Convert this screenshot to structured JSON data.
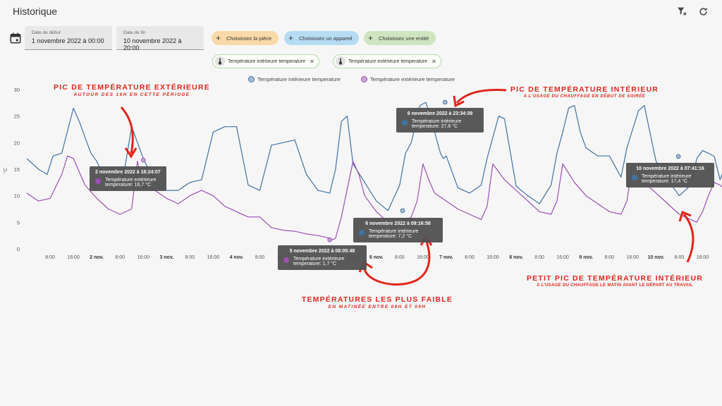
{
  "header": {
    "title": "Historique",
    "clear_filter_icon": "filter-remove-icon",
    "refresh_icon": "refresh-icon"
  },
  "date_range": {
    "calendar_icon": "calendar-icon",
    "start": {
      "label": "Date de début",
      "value": "1 novembre 2022 à 00:00"
    },
    "end": {
      "label": "Date de fin",
      "value": "10 novembre 2022 à 20:00"
    }
  },
  "pickers": [
    {
      "label": "Choisissez la pièce",
      "color": "#f9d9a8"
    },
    {
      "label": "Choisissez un appareil",
      "color": "#b6dcf3"
    },
    {
      "label": "Choisissez une entité",
      "color": "#cfe5c0"
    }
  ],
  "selected_entities": [
    {
      "label": "Température intérieure temperature",
      "icon": "thermometer-icon"
    },
    {
      "label": "Température extérieure temperature",
      "icon": "thermometer-icon"
    }
  ],
  "colors": {
    "indoor": "#3f72a5",
    "outdoor": "#9c4fb5",
    "indoor_dot": "#a9bed4",
    "outdoor_dot": "#caa6d6",
    "annotation": "#e0251b"
  },
  "chart_data": {
    "type": "line",
    "ylabel": "°C",
    "ylim": [
      0,
      30
    ],
    "yticks": [
      "0",
      "5",
      "10",
      "15",
      "20",
      "25",
      "30"
    ],
    "xticks": [
      "8:00",
      "16:00",
      "2 nov.",
      "8:00",
      "16:00",
      "3 nov.",
      "8:00",
      "16:00",
      "4 nov.",
      "8:00",
      "16:00",
      "5 nov.",
      "8:00",
      "16:00",
      "6 nov.",
      "8:00",
      "16:00",
      "7 nov.",
      "8:00",
      "16:00",
      "8 nov.",
      "8:00",
      "16:00",
      "9 nov.",
      "8:00",
      "16:00",
      "10 nov.",
      "8:00",
      "16:00"
    ],
    "legend_position": "top-center",
    "series": [
      {
        "name": "Température intérieure temperature",
        "x_hours": [
          0,
          4,
          7,
          9,
          12,
          16,
          18,
          20,
          22,
          24,
          27,
          30,
          33,
          36,
          40,
          44,
          48,
          52,
          56,
          60,
          64,
          68,
          70,
          72,
          76,
          80,
          84,
          88,
          92,
          96,
          100,
          104,
          106,
          108,
          110,
          112,
          116,
          120,
          124,
          128,
          130,
          131,
          132,
          135,
          137,
          140,
          141,
          142,
          143,
          144,
          148,
          152,
          156,
          158,
          160,
          162,
          164,
          168,
          172,
          176,
          180,
          182,
          184,
          186,
          188,
          190,
          192,
          196,
          200,
          204,
          206,
          208,
          210,
          212,
          216,
          220,
          224,
          228,
          230,
          232,
          234,
          236,
          238,
          240,
          244
        ],
        "values": [
          17,
          15,
          14,
          17.5,
          18,
          26.5,
          24,
          21,
          18,
          16.5,
          13,
          11,
          13,
          23,
          17,
          12.5,
          11,
          11,
          12.5,
          13,
          22,
          23,
          23,
          23,
          12,
          11,
          19.5,
          20,
          20.5,
          14,
          11,
          10.5,
          15,
          24,
          25,
          16,
          12.5,
          9,
          7.2,
          12,
          18,
          19,
          20,
          27,
          27.6,
          22,
          20,
          18,
          17,
          17.5,
          11.5,
          10.5,
          12,
          17,
          21,
          25,
          24.5,
          11.8,
          10,
          8.5,
          12,
          18,
          22,
          26.5,
          27,
          22,
          19,
          17.5,
          17.5,
          13.5,
          19,
          22.5,
          26,
          27,
          16.5,
          13,
          10,
          12,
          17,
          18.5,
          18,
          17.4,
          13,
          16,
          12
        ]
      },
      {
        "name": "Température extérieure temperature",
        "x_hours": [
          0,
          4,
          8,
          12,
          14,
          16,
          20,
          24,
          28,
          32,
          36,
          38,
          40,
          44,
          48,
          52,
          56,
          60,
          64,
          68,
          72,
          76,
          80,
          84,
          88,
          92,
          96,
          100,
          104,
          105,
          106,
          108,
          112,
          114,
          116,
          120,
          124,
          128,
          132,
          134,
          136,
          138,
          140,
          144,
          148,
          152,
          156,
          158,
          160,
          164,
          168,
          172,
          176,
          180,
          182,
          184,
          188,
          192,
          196,
          200,
          204,
          206,
          208,
          212,
          216,
          220,
          224,
          228,
          230,
          232,
          234,
          236,
          238,
          240,
          244
        ],
        "values": [
          10.5,
          9,
          9.5,
          14,
          17.5,
          17,
          12,
          9.5,
          7.5,
          6.5,
          7.5,
          16.5,
          11.5,
          11,
          9.5,
          8.5,
          10,
          11,
          10,
          8,
          7,
          6,
          6,
          4,
          3.5,
          3.3,
          2.8,
          2.5,
          2,
          1.7,
          2,
          6,
          16.5,
          14,
          10,
          7,
          5,
          4.5,
          6,
          9,
          16,
          13,
          10.5,
          9,
          7.5,
          6.5,
          5.5,
          8,
          16,
          13,
          11,
          9,
          7,
          6.5,
          9,
          16,
          12.5,
          10,
          8.5,
          7,
          6.5,
          9,
          16,
          12.5,
          10.5,
          8.5,
          6.5,
          5.5,
          5,
          7,
          10,
          12.5,
          12,
          11,
          8.5
        ]
      }
    ],
    "highlighted_points": [
      {
        "series": "Température extérieure temperature",
        "x_hours": 40,
        "value": 16.7
      },
      {
        "series": "Température extérieure temperature",
        "x_hours": 104,
        "value": 1.7
      },
      {
        "series": "Température intérieure temperature",
        "x_hours": 129,
        "value": 7.2
      },
      {
        "series": "Température intérieure temperature",
        "x_hours": 143.6,
        "value": 27.6
      },
      {
        "series": "Température intérieure temperature",
        "x_hours": 223.7,
        "value": 17.4
      }
    ]
  },
  "tooltips": [
    {
      "title": "2 novembre 2022 à 16:24:07",
      "line1": "Température extérieure",
      "line2": "temperature: 16,7 °C",
      "series": "outdoor"
    },
    {
      "title": "6 novembre 2022 à 23:34:39",
      "line1": "Température intérieure",
      "line2": "temperature: 27,6 °C",
      "series": "indoor"
    },
    {
      "title": "6 novembre 2022 à 09:16:58",
      "line1": "Température intérieure",
      "line2": "temperature: 7,2 °C",
      "series": "indoor"
    },
    {
      "title": "5 novembre 2022 à 08:05:48",
      "line1": "Température extérieure",
      "line2": "temperature: 1,7 °C",
      "series": "outdoor"
    },
    {
      "title": "10 novembre 2022 à 07:41:16",
      "line1": "Température intérieure",
      "line2": "temperature: 17,4 °C",
      "series": "indoor"
    }
  ],
  "annotations": [
    {
      "title": "PIC DE TEMPÉRATURE EXTÉRIEURE",
      "subtitle": "AUTOUR DES 16H EN CETTE PÉRIODE"
    },
    {
      "title": "PIC DE TEMPÉRATURE INTÉRIEUR",
      "subtitle": "A L'USAGE DU CHAUFFAGE EN DÉBUT DE SOIRÉE"
    },
    {
      "title": "TEMPÉRATURES LES PLUS FAIBLE",
      "subtitle": "EN MATINÉE ENTRE 08H ET 09H"
    },
    {
      "title": "PETIT PIC DE TEMPÉRATURE INTÉRIEUR",
      "subtitle": "A L'USAGE DU CHAUFFAGE LE MATIN AVANT LE DÉPART AU TRAVAIL"
    }
  ]
}
